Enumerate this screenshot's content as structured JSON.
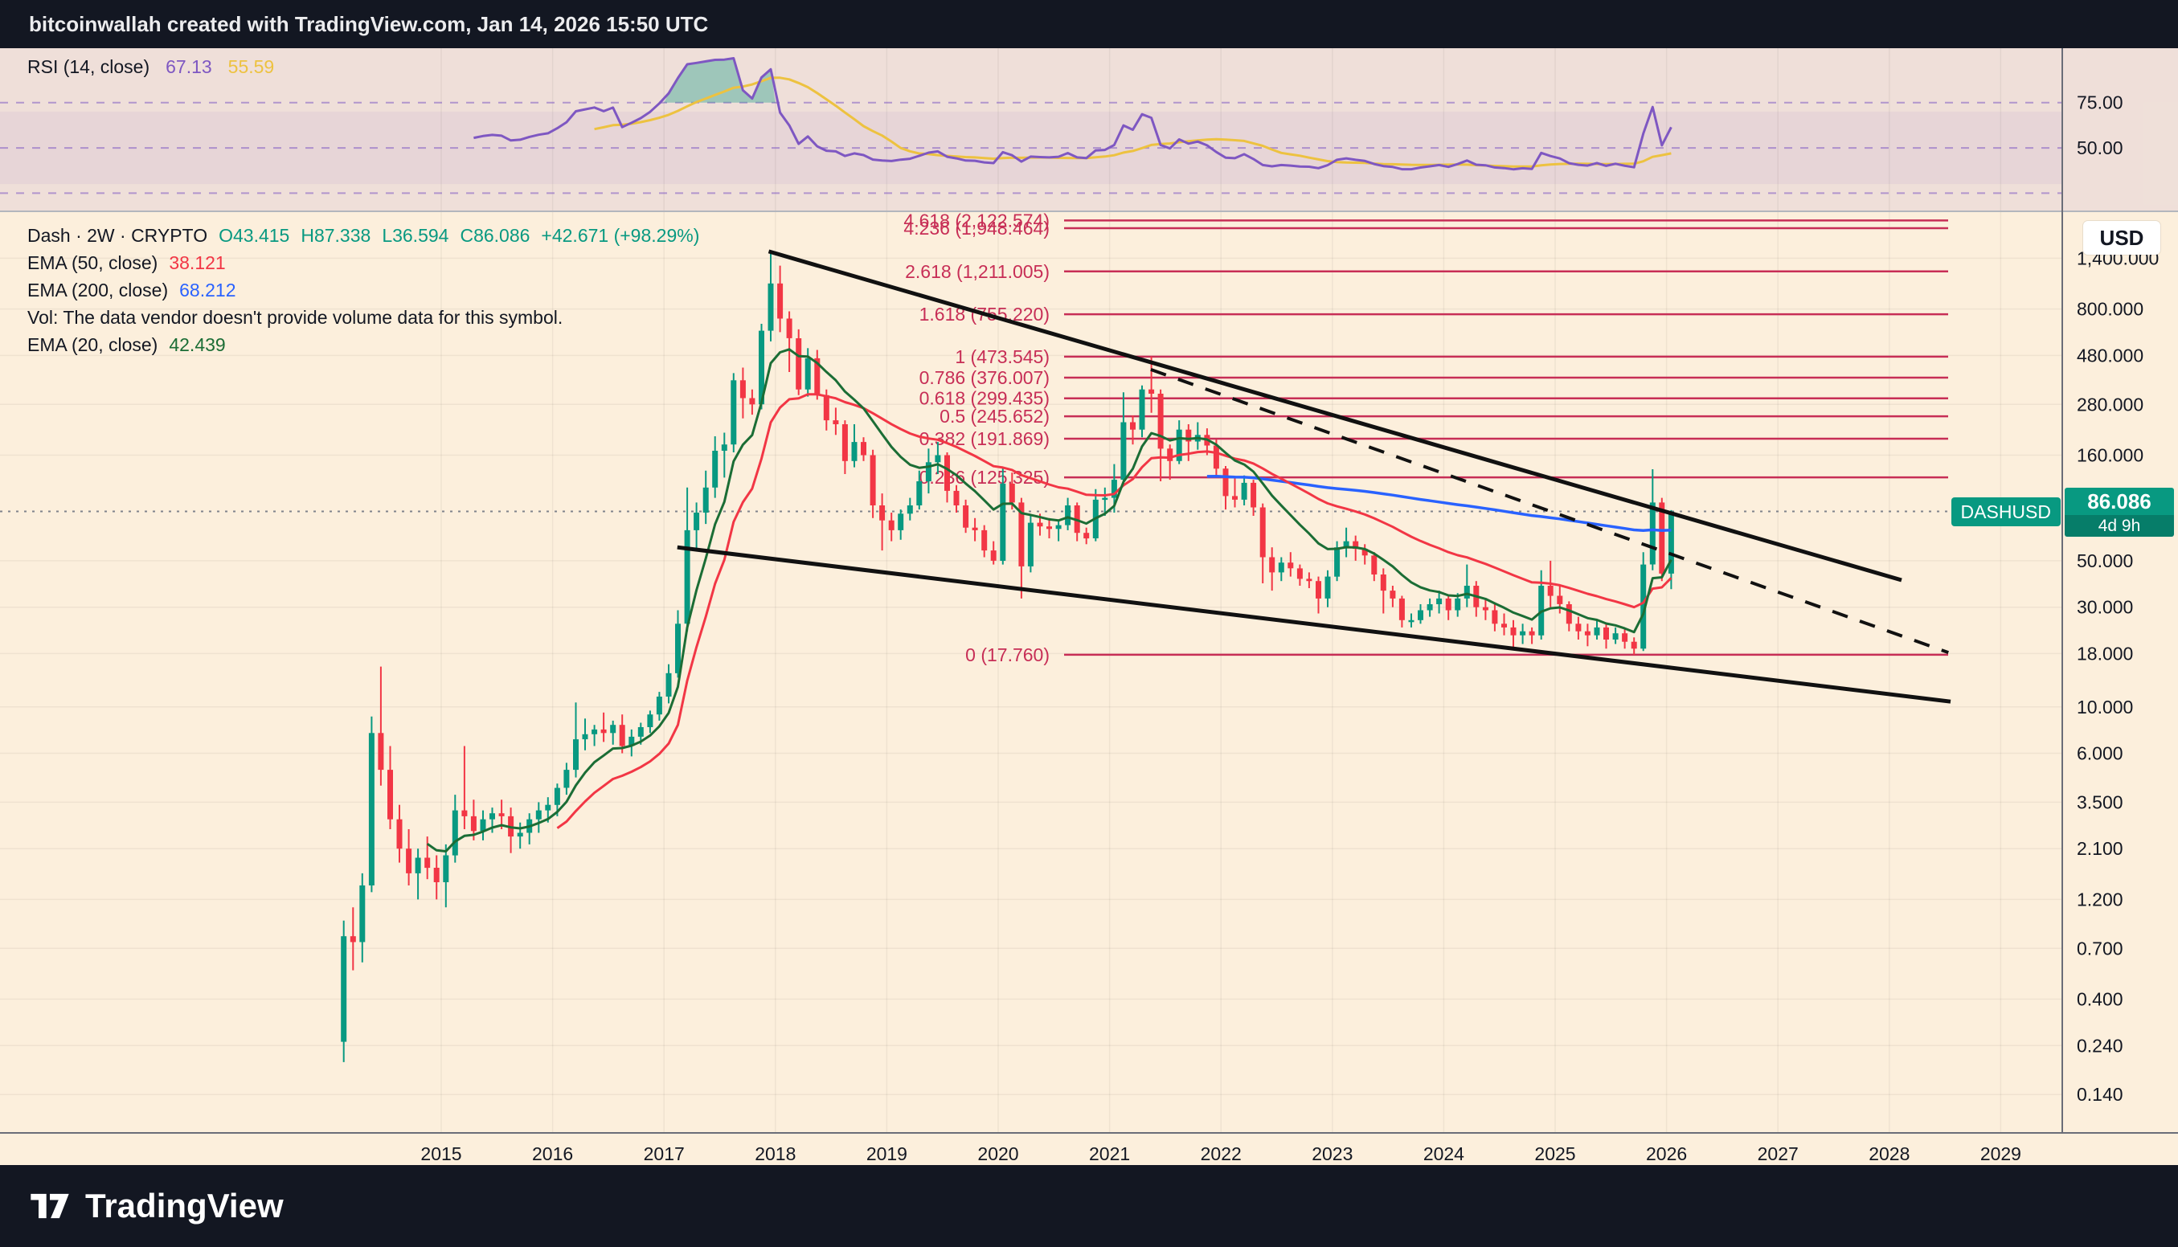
{
  "header": {
    "title": "bitcoinwallah created with TradingView.com, Jan 14, 2026 15:50 UTC"
  },
  "rsi_pane": {
    "legend_label": "RSI (14, close)",
    "rsi_value": "67.13",
    "ma_value": "55.59",
    "levels": [
      {
        "value": 75,
        "label": "75.00"
      },
      {
        "value": 50,
        "label": "50.00"
      },
      {
        "value": 25,
        "label": ""
      }
    ],
    "scale_min": 15,
    "scale_max": 105
  },
  "main_pane": {
    "legend": {
      "symbol_title": "Dash · 2W · CRYPTO",
      "o": "O43.415",
      "h": "H87.338",
      "l": "L36.594",
      "c": "C86.086",
      "change": "+42.671 (+98.29%)",
      "ema50_label": "EMA (50, close)",
      "ema50_value": "38.121",
      "ema200_label": "EMA (200, close)",
      "ema200_value": "68.212",
      "vol_note": "Vol: The data vendor doesn't provide volume data for this symbol.",
      "ema20_label": "EMA (20, close)",
      "ema20_value": "42.439"
    },
    "price_axis": {
      "currency_button": "USD",
      "ticks": [
        {
          "price": 1400,
          "label": "1,400.000"
        },
        {
          "price": 800,
          "label": "800.000"
        },
        {
          "price": 480,
          "label": "480.000"
        },
        {
          "price": 280,
          "label": "280.000"
        },
        {
          "price": 160,
          "label": "160.000"
        },
        {
          "price": 50,
          "label": "50.000"
        },
        {
          "price": 30,
          "label": "30.000"
        },
        {
          "price": 18,
          "label": "18.000"
        },
        {
          "price": 10,
          "label": "10.000"
        },
        {
          "price": 6,
          "label": "6.000"
        },
        {
          "price": 3.5,
          "label": "3.500"
        },
        {
          "price": 2.1,
          "label": "2.100"
        },
        {
          "price": 1.2,
          "label": "1.200"
        },
        {
          "price": 0.7,
          "label": "0.700"
        },
        {
          "price": 0.4,
          "label": "0.400"
        },
        {
          "price": 0.24,
          "label": "0.240"
        },
        {
          "price": 0.14,
          "label": "0.140"
        }
      ]
    },
    "symbol_tag": "DASHUSD",
    "price_tag": {
      "price_label": "86.086",
      "price_value": 86.086,
      "countdown": "4d 9h"
    },
    "time_axis_years": [
      2015,
      2016,
      2017,
      2018,
      2019,
      2020,
      2021,
      2022,
      2023,
      2024,
      2025,
      2026,
      2027,
      2028,
      2029
    ]
  },
  "footer": {
    "brand": "TradingView"
  },
  "colors": {
    "background": "#fcefdc",
    "panel_dark": "#131722",
    "text": "#131722",
    "up": "#089981",
    "down": "#f23645",
    "ema20": "#1b6d35",
    "ema50": "#f23645",
    "ema200": "#2962ff",
    "rsi": "#7e57c2",
    "rsi_ma": "#edc240",
    "fib": "#c72e56",
    "trendline": "#111111"
  },
  "chart_data": {
    "type": "candlestick",
    "symbol": "DASHUSD",
    "interval": "2W",
    "scale": "log",
    "note": "OHLC path approximated at monthly resolution from the plotted 2W chart",
    "start": "2014-02",
    "step_months": 1,
    "ohlc": [
      [
        0.25,
        0.95,
        0.2,
        0.8
      ],
      [
        0.8,
        1.1,
        0.55,
        0.75
      ],
      [
        0.75,
        1.6,
        0.6,
        1.4
      ],
      [
        1.4,
        9.0,
        1.3,
        7.5
      ],
      [
        7.5,
        15.6,
        4.2,
        5.0
      ],
      [
        5.0,
        6.5,
        2.6,
        2.9
      ],
      [
        2.9,
        3.4,
        1.8,
        2.1
      ],
      [
        2.1,
        2.6,
        1.4,
        1.6
      ],
      [
        1.6,
        2.1,
        1.2,
        1.9
      ],
      [
        1.9,
        2.4,
        1.5,
        1.7
      ],
      [
        1.7,
        1.95,
        1.2,
        1.45
      ],
      [
        1.45,
        2.2,
        1.1,
        1.95
      ],
      [
        1.95,
        3.8,
        1.8,
        3.2
      ],
      [
        3.2,
        6.5,
        2.6,
        3.0
      ],
      [
        3.0,
        3.6,
        2.3,
        2.55
      ],
      [
        2.55,
        3.2,
        2.3,
        2.9
      ],
      [
        2.9,
        3.3,
        2.5,
        3.1
      ],
      [
        3.1,
        3.6,
        2.6,
        3.0
      ],
      [
        3.0,
        3.3,
        2.0,
        2.4
      ],
      [
        2.4,
        2.8,
        2.1,
        2.5
      ],
      [
        2.5,
        3.1,
        2.2,
        2.9
      ],
      [
        2.9,
        3.5,
        2.5,
        3.2
      ],
      [
        3.2,
        3.7,
        2.8,
        3.4
      ],
      [
        3.4,
        4.3,
        3.0,
        4.1
      ],
      [
        4.1,
        5.4,
        3.8,
        5.0
      ],
      [
        5.0,
        10.5,
        4.6,
        7.0
      ],
      [
        7.0,
        8.8,
        6.2,
        7.4
      ],
      [
        7.4,
        8.2,
        6.5,
        7.8
      ],
      [
        7.8,
        9.4,
        6.8,
        7.5
      ],
      [
        7.5,
        8.6,
        6.6,
        8.2
      ],
      [
        8.2,
        9.2,
        6.0,
        6.5
      ],
      [
        6.5,
        7.8,
        5.8,
        7.2
      ],
      [
        7.2,
        8.4,
        6.6,
        8.0
      ],
      [
        8.0,
        9.6,
        7.5,
        9.2
      ],
      [
        9.2,
        11.8,
        8.6,
        11.2
      ],
      [
        11.2,
        16.0,
        10.4,
        14.5
      ],
      [
        14.5,
        29.0,
        13.8,
        25.0
      ],
      [
        25.0,
        112.0,
        23.0,
        70.0
      ],
      [
        70.0,
        95.0,
        56.0,
        85.0
      ],
      [
        85.0,
        135.0,
        75.0,
        112.0
      ],
      [
        112.0,
        197.0,
        100.0,
        168.0
      ],
      [
        168.0,
        205.0,
        125.0,
        180.0
      ],
      [
        180.0,
        395.0,
        165.0,
        365.0
      ],
      [
        365.0,
        420.0,
        240.0,
        300.0
      ],
      [
        300.0,
        330.0,
        250.0,
        280.0
      ],
      [
        280.0,
        680.0,
        265.0,
        630.0
      ],
      [
        630.0,
        1520.0,
        560.0,
        1060.0
      ],
      [
        1060,
        1290,
        620,
        720
      ],
      [
        720,
        780,
        400,
        580
      ],
      [
        580,
        640,
        310,
        330
      ],
      [
        330,
        520,
        305,
        465
      ],
      [
        465,
        510,
        295,
        310
      ],
      [
        310,
        330,
        210,
        235
      ],
      [
        235,
        270,
        200,
        225
      ],
      [
        225,
        235,
        130,
        150
      ],
      [
        150,
        225,
        140,
        185
      ],
      [
        185,
        195,
        150,
        160
      ],
      [
        160,
        170,
        80,
        92
      ],
      [
        92,
        105,
        56,
        78
      ],
      [
        78,
        85,
        62,
        70
      ],
      [
        70,
        88,
        63,
        84
      ],
      [
        84,
        100,
        78,
        92
      ],
      [
        92,
        135,
        88,
        120
      ],
      [
        120,
        172,
        105,
        148
      ],
      [
        148,
        185,
        130,
        160
      ],
      [
        160,
        165,
        95,
        108
      ],
      [
        108,
        115,
        85,
        92
      ],
      [
        92,
        98,
        68,
        72
      ],
      [
        72,
        80,
        62,
        70
      ],
      [
        70,
        74,
        52,
        56
      ],
      [
        56,
        62,
        48,
        50
      ],
      [
        50,
        140,
        48,
        117
      ],
      [
        117,
        132,
        88,
        95
      ],
      [
        95,
        100,
        33,
        47
      ],
      [
        47,
        82,
        44,
        76
      ],
      [
        76,
        84,
        66,
        73
      ],
      [
        73,
        80,
        64,
        71
      ],
      [
        71,
        78,
        62,
        74
      ],
      [
        74,
        100,
        70,
        92
      ],
      [
        92,
        95,
        62,
        68
      ],
      [
        68,
        72,
        60,
        64
      ],
      [
        64,
        110,
        62,
        98
      ],
      [
        98,
        112,
        82,
        100
      ],
      [
        100,
        145,
        85,
        122
      ],
      [
        122,
        320,
        115,
        230
      ],
      [
        230,
        248,
        180,
        212
      ],
      [
        212,
        345,
        195,
        330
      ],
      [
        330,
        473.5,
        255,
        315
      ],
      [
        315,
        330,
        120,
        172
      ],
      [
        172,
        180,
        122,
        150
      ],
      [
        150,
        235,
        145,
        212
      ],
      [
        212,
        225,
        150,
        186
      ],
      [
        186,
        230,
        170,
        200
      ],
      [
        200,
        215,
        160,
        178
      ],
      [
        178,
        190,
        125,
        138
      ],
      [
        138,
        142,
        88,
        102
      ],
      [
        102,
        125,
        90,
        98
      ],
      [
        98,
        128,
        92,
        118
      ],
      [
        118,
        122,
        82,
        90
      ],
      [
        90,
        94,
        39,
        52
      ],
      [
        52,
        58,
        36,
        44
      ],
      [
        44,
        52,
        40,
        49
      ],
      [
        49,
        55,
        42,
        46
      ],
      [
        46,
        48,
        38,
        41
      ],
      [
        41,
        44,
        37,
        40
      ],
      [
        40,
        42,
        28,
        33
      ],
      [
        33,
        45,
        30,
        42
      ],
      [
        42,
        62,
        40,
        58
      ],
      [
        58,
        72,
        52,
        62
      ],
      [
        62,
        66,
        50,
        57
      ],
      [
        57,
        60,
        48,
        53
      ],
      [
        53,
        55,
        40,
        43
      ],
      [
        43,
        46,
        28,
        36
      ],
      [
        36,
        38,
        30,
        33
      ],
      [
        33,
        34,
        24,
        26
      ],
      [
        26,
        28,
        24,
        26
      ],
      [
        26,
        31,
        25,
        29
      ],
      [
        29,
        33,
        27,
        31
      ],
      [
        31,
        36,
        28,
        33
      ],
      [
        33,
        34,
        26,
        29
      ],
      [
        29,
        35,
        27,
        33
      ],
      [
        33,
        48,
        30,
        38
      ],
      [
        38,
        40,
        27,
        30
      ],
      [
        30,
        33,
        26,
        29
      ],
      [
        29,
        31,
        23,
        25
      ],
      [
        25,
        28,
        22,
        24
      ],
      [
        24,
        26,
        19,
        22
      ],
      [
        22,
        25,
        20,
        23
      ],
      [
        23,
        24,
        20,
        22
      ],
      [
        22,
        45,
        21,
        38
      ],
      [
        38,
        50,
        30,
        34
      ],
      [
        34,
        38,
        28,
        31
      ],
      [
        31,
        32,
        23,
        25
      ],
      [
        25,
        27,
        21,
        23
      ],
      [
        23,
        25,
        19.5,
        22
      ],
      [
        22,
        26,
        21,
        24
      ],
      [
        24,
        25,
        19,
        21
      ],
      [
        21,
        24,
        20,
        22.5
      ],
      [
        22.5,
        23.5,
        19,
        20.5
      ],
      [
        20.5,
        21.5,
        17.76,
        19
      ],
      [
        19,
        55,
        18.5,
        48
      ],
      [
        48,
        137,
        45,
        95
      ],
      [
        95,
        100,
        40,
        43.4
      ],
      [
        43.415,
        87.338,
        36.594,
        86.086
      ]
    ],
    "indicators": [
      {
        "name": "EMA",
        "period": 20,
        "color_key": "ema20",
        "last_value": 42.439
      },
      {
        "name": "EMA",
        "period": 50,
        "color_key": "ema50",
        "last_value": 38.121
      },
      {
        "name": "EMA",
        "period": 200,
        "color_key": "ema200",
        "last_value": 68.212
      },
      {
        "name": "RSI",
        "period": 14,
        "ma_period": 14,
        "last_value": 67.13,
        "ma_last_value": 55.59
      }
    ],
    "fib_extension": [
      {
        "level": "4.618",
        "price": 2122.574,
        "label": "4.618 (2,122.574)"
      },
      {
        "level": "4.236",
        "price": 1948.464,
        "label": "4.236 (1,948.464)"
      },
      {
        "level": "2.618",
        "price": 1211.005,
        "label": "2.618 (1,211.005)"
      },
      {
        "level": "1.618",
        "price": 755.22,
        "label": "1.618 (755.220)"
      },
      {
        "level": "1",
        "price": 473.545,
        "label": "1 (473.545)"
      },
      {
        "level": "0.786",
        "price": 376.007,
        "label": "0.786 (376.007)"
      },
      {
        "level": "0.618",
        "price": 299.435,
        "label": "0.618 (299.435)"
      },
      {
        "level": "0.5",
        "price": 245.652,
        "label": "0.5 (245.652)"
      },
      {
        "level": "0.382",
        "price": 191.869,
        "label": "0.382 (191.869)"
      },
      {
        "level": "0.236",
        "price": 125.325,
        "label": "0.236 (125.325)"
      },
      {
        "level": "0",
        "price": 17.76,
        "label": "0 (17.760)"
      }
    ],
    "trendlines": [
      {
        "style": "solid",
        "from": {
          "year": 2017.94,
          "price": 1509
        },
        "to": {
          "year": 2028.11,
          "price": 40.4
        }
      },
      {
        "style": "solid",
        "from": {
          "year": 2017.12,
          "price": 58
        },
        "to": {
          "year": 2028.55,
          "price": 10.6
        }
      },
      {
        "style": "dashed",
        "from": {
          "year": 2021.37,
          "price": 411
        },
        "to": {
          "year": 2028.53,
          "price": 18.2
        }
      }
    ]
  }
}
